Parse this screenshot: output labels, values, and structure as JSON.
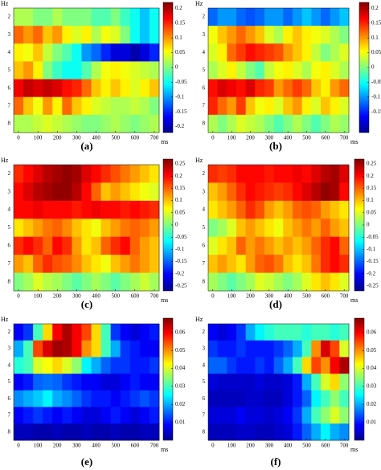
{
  "chart_data": [
    {
      "type": "heatmap",
      "label": "(a)",
      "y_label": "Hz",
      "x_label": "ms",
      "colormap": "jet",
      "x": [
        0,
        50,
        100,
        150,
        200,
        250,
        300,
        350,
        400,
        450,
        500,
        550,
        600,
        650,
        700
      ],
      "xlim": [
        -25,
        725
      ],
      "xticks": [
        0,
        100,
        200,
        300,
        400,
        500,
        600,
        700
      ],
      "categories": [
        "2",
        "3",
        "4",
        "5",
        "6",
        "7",
        "8"
      ],
      "values": [
        [
          0.02,
          0.02,
          0.0,
          0.0,
          0.02,
          0.0,
          0.0,
          0.0,
          -0.02,
          -0.02,
          0.0,
          -0.03,
          -0.05,
          -0.08,
          -0.05
        ],
        [
          0.12,
          0.1,
          0.12,
          0.08,
          0.1,
          0.06,
          0.04,
          0.06,
          0.02,
          0.05,
          0.04,
          0.0,
          -0.05,
          -0.08,
          -0.05
        ],
        [
          0.06,
          0.05,
          0.08,
          0.03,
          0.0,
          -0.02,
          -0.05,
          -0.1,
          -0.12,
          -0.15,
          -0.18,
          -0.18,
          -0.2,
          -0.18,
          -0.15
        ],
        [
          0.08,
          0.1,
          0.06,
          0.0,
          -0.03,
          -0.05,
          -0.05,
          -0.02,
          0.02,
          0.05,
          0.06,
          0.05,
          0.04,
          0.03,
          0.02
        ],
        [
          0.17,
          0.19,
          0.18,
          0.19,
          0.18,
          0.16,
          0.15,
          0.12,
          0.08,
          0.06,
          0.08,
          0.06,
          0.04,
          0.06,
          0.08
        ],
        [
          0.12,
          0.08,
          0.05,
          0.1,
          0.06,
          0.12,
          0.08,
          0.06,
          0.04,
          0.03,
          0.02,
          0.02,
          0.03,
          0.02,
          0.0
        ],
        [
          0.02,
          0.02,
          0.03,
          0.04,
          0.03,
          0.02,
          0.01,
          0.0,
          0.0,
          0.01,
          0.02,
          0.01,
          0.0,
          0.01,
          0.02
        ]
      ],
      "zlim": [
        -0.22,
        0.22
      ],
      "zticks": [
        0.2,
        0.15,
        0.1,
        0.05,
        0,
        -0.05,
        -0.1,
        -0.15,
        -0.2
      ]
    },
    {
      "type": "heatmap",
      "label": "(b)",
      "y_label": "Hz",
      "x_label": "ms",
      "colormap": "jet",
      "x": [
        0,
        50,
        100,
        150,
        200,
        250,
        300,
        350,
        400,
        450,
        500,
        550,
        600,
        650,
        700
      ],
      "xlim": [
        -25,
        725
      ],
      "xticks": [
        0,
        100,
        200,
        300,
        400,
        500,
        600,
        700
      ],
      "categories": [
        "2",
        "3",
        "4",
        "5",
        "6",
        "7",
        "8"
      ],
      "values": [
        [
          -0.12,
          -0.1,
          -0.1,
          -0.12,
          -0.13,
          -0.12,
          -0.1,
          -0.1,
          -0.12,
          -0.1,
          -0.08,
          -0.1,
          -0.12,
          -0.1,
          -0.08
        ],
        [
          0.05,
          0.08,
          0.1,
          0.12,
          0.1,
          0.08,
          0.04,
          0.02,
          0.06,
          0.08,
          0.06,
          0.05,
          0.04,
          0.02,
          0.0
        ],
        [
          0.04,
          0.06,
          0.12,
          0.14,
          0.16,
          0.15,
          0.14,
          0.13,
          0.1,
          0.08,
          0.06,
          0.03,
          0.0,
          0.02,
          0.04
        ],
        [
          0.02,
          0.04,
          0.06,
          0.03,
          0.0,
          -0.02,
          0.03,
          0.05,
          0.06,
          0.04,
          0.02,
          0.05,
          0.06,
          0.04,
          0.02
        ],
        [
          0.16,
          0.18,
          0.17,
          0.16,
          0.18,
          0.15,
          0.14,
          0.1,
          0.12,
          0.14,
          0.12,
          0.08,
          0.06,
          0.1,
          0.12
        ],
        [
          0.15,
          0.12,
          0.1,
          0.14,
          0.08,
          0.05,
          0.06,
          0.04,
          0.08,
          0.1,
          0.06,
          0.04,
          0.08,
          0.06,
          0.04
        ],
        [
          0.02,
          0.0,
          0.02,
          0.04,
          0.03,
          0.02,
          0.0,
          -0.02,
          0.0,
          0.02,
          0.0,
          -0.02,
          0.0,
          0.02,
          0.01
        ]
      ],
      "zlim": [
        -0.22,
        0.22
      ],
      "zticks": [
        0.2,
        0.15,
        0.1,
        0.05,
        0,
        -0.05,
        -0.1,
        -0.15
      ]
    },
    {
      "type": "heatmap",
      "label": "(c)",
      "y_label": "Hz",
      "x_label": "ms",
      "colormap": "jet",
      "x": [
        0,
        50,
        100,
        150,
        200,
        250,
        300,
        350,
        400,
        450,
        500,
        550,
        600,
        650,
        700
      ],
      "xlim": [
        -25,
        725
      ],
      "xticks": [
        0,
        100,
        200,
        300,
        400,
        500,
        600,
        700
      ],
      "categories": [
        "2",
        "3",
        "4",
        "5",
        "6",
        "7",
        "8"
      ],
      "values": [
        [
          0.18,
          0.2,
          0.22,
          0.24,
          0.25,
          0.26,
          0.25,
          0.22,
          0.2,
          0.18,
          0.16,
          0.14,
          0.12,
          0.1,
          0.08
        ],
        [
          0.2,
          0.22,
          0.24,
          0.25,
          0.26,
          0.26,
          0.24,
          0.2,
          0.15,
          0.1,
          0.12,
          0.1,
          0.08,
          0.06,
          0.05
        ],
        [
          0.2,
          0.2,
          0.21,
          0.2,
          0.2,
          0.2,
          0.19,
          0.2,
          0.21,
          0.2,
          0.2,
          0.19,
          0.2,
          0.19,
          0.18
        ],
        [
          0.08,
          0.1,
          0.12,
          0.14,
          0.15,
          0.13,
          0.1,
          0.08,
          0.06,
          0.1,
          0.12,
          0.14,
          0.15,
          0.14,
          0.12
        ],
        [
          0.18,
          0.2,
          0.18,
          0.15,
          0.2,
          0.18,
          0.12,
          0.08,
          0.1,
          0.15,
          0.18,
          0.2,
          0.15,
          0.12,
          0.1
        ],
        [
          0.12,
          0.1,
          0.15,
          0.18,
          0.16,
          0.15,
          0.13,
          0.1,
          0.08,
          0.06,
          0.1,
          0.12,
          0.14,
          0.12,
          0.1
        ],
        [
          0.0,
          0.02,
          0.05,
          0.03,
          0.02,
          0.0,
          -0.02,
          0.0,
          0.02,
          0.0,
          -0.02,
          0.0,
          0.02,
          0.04,
          0.02
        ]
      ],
      "zlim": [
        -0.27,
        0.27
      ],
      "zticks": [
        0.25,
        0.2,
        0.15,
        0.1,
        0.05,
        0,
        -0.05,
        -0.1,
        -0.15,
        -0.2,
        -0.25
      ]
    },
    {
      "type": "heatmap",
      "label": "(d)",
      "y_label": "Hz",
      "x_label": "ms",
      "colormap": "jet",
      "x": [
        0,
        50,
        100,
        150,
        200,
        250,
        300,
        350,
        400,
        450,
        500,
        550,
        600,
        650,
        700
      ],
      "xlim": [
        -25,
        725
      ],
      "xticks": [
        0,
        100,
        200,
        300,
        400,
        500,
        600,
        700
      ],
      "categories": [
        "2",
        "3",
        "4",
        "5",
        "6",
        "7",
        "8"
      ],
      "values": [
        [
          0.18,
          0.17,
          0.18,
          0.2,
          0.2,
          0.2,
          0.19,
          0.2,
          0.2,
          0.21,
          0.2,
          0.22,
          0.24,
          0.25,
          0.22
        ],
        [
          0.1,
          0.12,
          0.15,
          0.18,
          0.2,
          0.19,
          0.18,
          0.17,
          0.18,
          0.2,
          0.22,
          0.24,
          0.26,
          0.25,
          0.2
        ],
        [
          0.08,
          0.1,
          0.12,
          0.15,
          0.18,
          0.16,
          0.12,
          0.1,
          0.12,
          0.15,
          0.16,
          0.15,
          0.12,
          0.1,
          0.08
        ],
        [
          0.0,
          0.02,
          0.05,
          0.1,
          0.12,
          0.1,
          0.08,
          0.06,
          0.1,
          0.12,
          0.14,
          0.12,
          0.15,
          0.12,
          0.1
        ],
        [
          0.05,
          0.08,
          0.1,
          0.15,
          0.12,
          0.14,
          0.12,
          0.1,
          0.12,
          0.1,
          0.12,
          0.15,
          0.18,
          0.2,
          0.15
        ],
        [
          0.1,
          0.12,
          0.1,
          0.08,
          0.12,
          0.15,
          0.16,
          0.14,
          0.1,
          0.08,
          0.1,
          0.14,
          0.18,
          0.2,
          0.18
        ],
        [
          0.02,
          0.0,
          -0.02,
          0.0,
          0.02,
          0.05,
          0.04,
          0.02,
          0.0,
          0.02,
          0.05,
          0.08,
          0.1,
          0.08,
          0.05
        ]
      ],
      "zlim": [
        -0.27,
        0.27
      ],
      "zticks": [
        0.25,
        0.2,
        0.15,
        0.1,
        0.05,
        0,
        -0.05,
        -0.1,
        -0.15,
        -0.2,
        -0.25
      ]
    },
    {
      "type": "heatmap",
      "label": "(e)",
      "y_label": "Hz",
      "x_label": "ms",
      "colormap": "jet",
      "x": [
        0,
        50,
        100,
        150,
        200,
        250,
        300,
        350,
        400,
        450,
        500,
        550,
        600,
        650,
        700
      ],
      "xlim": [
        -25,
        725
      ],
      "xticks": [
        0,
        100,
        200,
        300,
        400,
        500,
        600,
        700
      ],
      "categories": [
        "2",
        "3",
        "4",
        "5",
        "6",
        "7",
        "8"
      ],
      "values": [
        [
          0.008,
          0.012,
          0.03,
          0.045,
          0.06,
          0.065,
          0.06,
          0.055,
          0.045,
          0.03,
          0.012,
          0.008,
          0.006,
          0.008,
          0.01
        ],
        [
          0.02,
          0.03,
          0.055,
          0.062,
          0.066,
          0.065,
          0.06,
          0.05,
          0.045,
          0.03,
          0.02,
          0.012,
          0.01,
          0.008,
          0.008
        ],
        [
          0.028,
          0.03,
          0.04,
          0.042,
          0.045,
          0.04,
          0.035,
          0.025,
          0.02,
          0.015,
          0.012,
          0.012,
          0.01,
          0.01,
          0.012
        ],
        [
          0.008,
          0.01,
          0.015,
          0.016,
          0.015,
          0.012,
          0.01,
          0.008,
          0.008,
          0.006,
          0.006,
          0.008,
          0.01,
          0.008,
          0.008
        ],
        [
          0.018,
          0.02,
          0.022,
          0.025,
          0.02,
          0.018,
          0.015,
          0.012,
          0.01,
          0.01,
          0.008,
          0.01,
          0.012,
          0.014,
          0.012
        ],
        [
          0.008,
          0.01,
          0.012,
          0.01,
          0.008,
          0.01,
          0.008,
          0.006,
          0.006,
          0.008,
          0.01,
          0.008,
          0.006,
          0.008,
          0.01
        ],
        [
          0.004,
          0.004,
          0.003,
          0.003,
          0.004,
          0.003,
          0.003,
          0.004,
          0.003,
          0.003,
          0.004,
          0.003,
          0.003,
          0.004,
          0.004
        ]
      ],
      "zlim": [
        0,
        0.068
      ],
      "zticks": [
        0.06,
        0.05,
        0.04,
        0.03,
        0.02,
        0.01
      ]
    },
    {
      "type": "heatmap",
      "label": "(f)",
      "y_label": "Hz",
      "x_label": "ms",
      "colormap": "jet",
      "x": [
        0,
        50,
        100,
        150,
        200,
        250,
        300,
        350,
        400,
        450,
        500,
        550,
        600,
        650,
        700
      ],
      "xlim": [
        -25,
        725
      ],
      "xticks": [
        0,
        100,
        200,
        300,
        400,
        500,
        600,
        700
      ],
      "categories": [
        "2",
        "3",
        "4",
        "5",
        "6",
        "7",
        "8"
      ],
      "values": [
        [
          0.008,
          0.006,
          0.008,
          0.012,
          0.02,
          0.025,
          0.028,
          0.03,
          0.03,
          0.03,
          0.028,
          0.03,
          0.03,
          0.028,
          0.03
        ],
        [
          0.012,
          0.01,
          0.01,
          0.012,
          0.01,
          0.01,
          0.01,
          0.012,
          0.015,
          0.02,
          0.03,
          0.05,
          0.062,
          0.055,
          0.04
        ],
        [
          0.015,
          0.015,
          0.012,
          0.01,
          0.01,
          0.012,
          0.01,
          0.015,
          0.02,
          0.03,
          0.045,
          0.055,
          0.05,
          0.06,
          0.065
        ],
        [
          0.006,
          0.005,
          0.005,
          0.005,
          0.005,
          0.006,
          0.005,
          0.005,
          0.006,
          0.01,
          0.02,
          0.03,
          0.04,
          0.045,
          0.035
        ],
        [
          0.004,
          0.004,
          0.004,
          0.004,
          0.005,
          0.005,
          0.004,
          0.004,
          0.006,
          0.01,
          0.015,
          0.025,
          0.03,
          0.035,
          0.03
        ],
        [
          0.006,
          0.006,
          0.006,
          0.008,
          0.006,
          0.006,
          0.005,
          0.006,
          0.008,
          0.012,
          0.02,
          0.03,
          0.035,
          0.04,
          0.035
        ],
        [
          0.004,
          0.004,
          0.004,
          0.005,
          0.005,
          0.004,
          0.004,
          0.005,
          0.006,
          0.01,
          0.015,
          0.02,
          0.025,
          0.02,
          0.018
        ]
      ],
      "zlim": [
        0,
        0.068
      ],
      "zticks": [
        0.06,
        0.05,
        0.04,
        0.03,
        0.02,
        0.01
      ]
    }
  ]
}
